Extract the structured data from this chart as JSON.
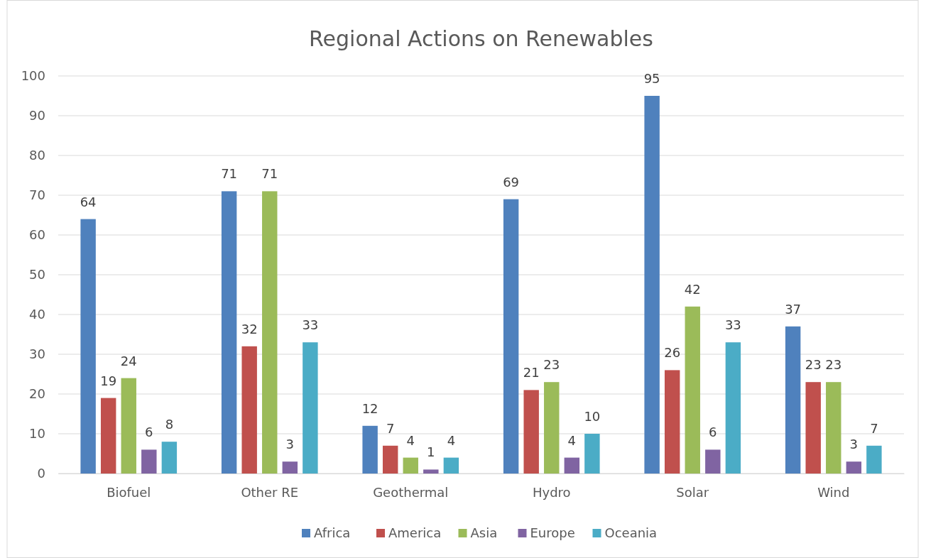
{
  "chart_data": {
    "type": "bar",
    "title": "Regional Actions on Renewables",
    "categories": [
      "Biofuel",
      "Other RE",
      "Geothermal",
      "Hydro",
      "Solar",
      "Wind"
    ],
    "series": [
      {
        "name": "Africa",
        "color": "#4f81bd",
        "values": [
          64,
          71,
          12,
          69,
          95,
          37
        ]
      },
      {
        "name": "America",
        "color": "#c0504d",
        "values": [
          19,
          32,
          7,
          21,
          26,
          23
        ]
      },
      {
        "name": "Asia",
        "color": "#9bbb59",
        "values": [
          24,
          71,
          4,
          23,
          42,
          23
        ]
      },
      {
        "name": "Europe",
        "color": "#8064a2",
        "values": [
          6,
          3,
          1,
          4,
          6,
          3
        ]
      },
      {
        "name": "Oceania",
        "color": "#4bacc6",
        "values": [
          8,
          33,
          4,
          10,
          33,
          7
        ]
      }
    ],
    "ylim": [
      0,
      100
    ],
    "yticks": [
      0,
      10,
      20,
      30,
      40,
      50,
      60,
      70,
      80,
      90,
      100
    ],
    "grid": "y",
    "legend": "bottom",
    "data_labels": true
  }
}
